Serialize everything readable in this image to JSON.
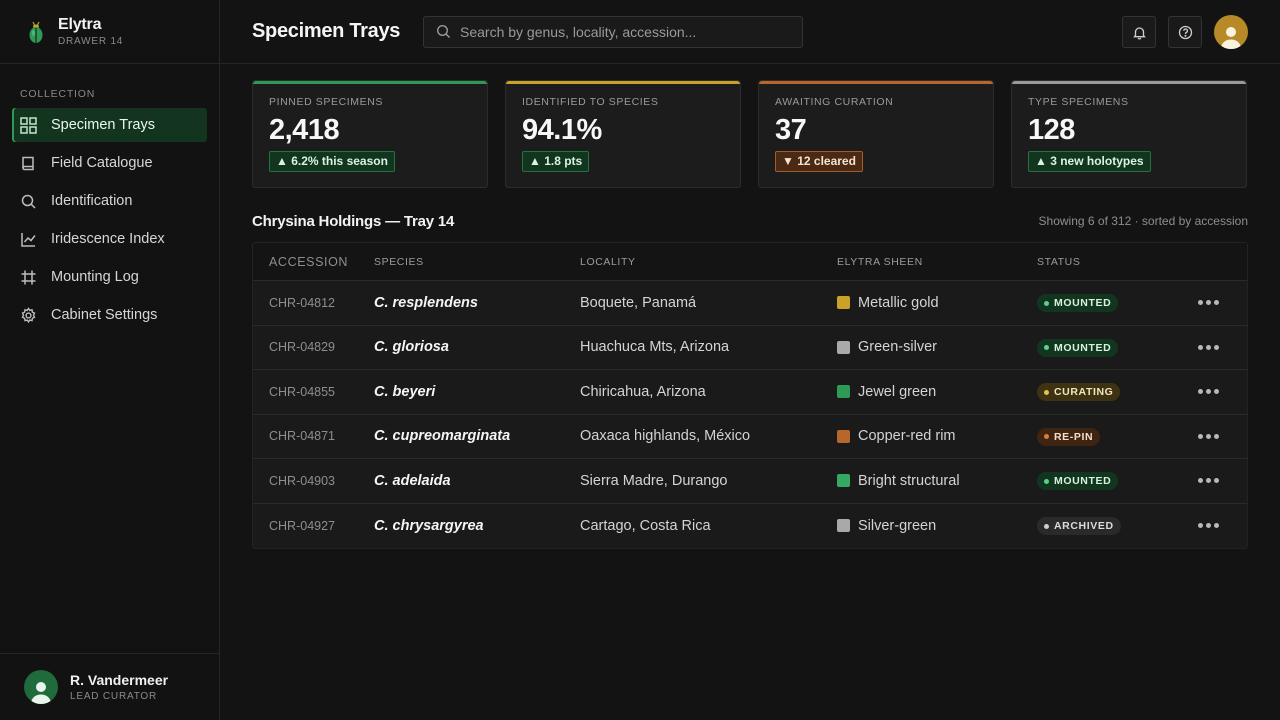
{
  "brand": {
    "name": "Elytra",
    "sub": "DRAWER 14"
  },
  "sidebar": {
    "section": "COLLECTION",
    "items": [
      {
        "label": "Specimen Trays",
        "icon": "grid-icon",
        "active": true
      },
      {
        "label": "Field Catalogue",
        "icon": "book-icon",
        "active": false
      },
      {
        "label": "Identification",
        "icon": "search-icon",
        "active": false
      },
      {
        "label": "Iridescence Index",
        "icon": "chart-icon",
        "active": false
      },
      {
        "label": "Mounting Log",
        "icon": "hash-icon",
        "active": false
      },
      {
        "label": "Cabinet Settings",
        "icon": "gear-icon",
        "active": false
      }
    ],
    "user": {
      "name": "R. Vandermeer",
      "role": "LEAD CURATOR"
    }
  },
  "header": {
    "title": "Specimen Trays",
    "search_placeholder": "Search by genus, locality, accession..."
  },
  "stats": [
    {
      "label": "PINNED SPECIMENS",
      "value": "2,418",
      "delta": "▲ 6.2% this season",
      "direction": "up",
      "accent": "#2f9a55"
    },
    {
      "label": "IDENTIFIED TO SPECIES",
      "value": "94.1%",
      "delta": "▲ 1.8 pts",
      "direction": "up",
      "accent": "#c9a227"
    },
    {
      "label": "AWAITING CURATION",
      "value": "37",
      "delta": "▼ 12 cleared",
      "direction": "down",
      "accent": "#b8662a"
    },
    {
      "label": "TYPE SPECIMENS",
      "value": "128",
      "delta": "▲ 3 new holotypes",
      "direction": "up",
      "accent": "#9a9a9a"
    }
  ],
  "table": {
    "title": "Chrysina Holdings — Tray 14",
    "meta": "Showing 6 of 312 · sorted by accession",
    "columns": [
      "ACCESSION",
      "SPECIES",
      "LOCALITY",
      "ELYTRA SHEEN",
      "STATUS"
    ],
    "rows": [
      {
        "accession": "CHR-04812",
        "species": "C. resplendens",
        "locality": "Boquete, Panamá",
        "sheen": "Metallic gold",
        "sheen_color": "#c9a227",
        "status": "MOUNTED"
      },
      {
        "accession": "CHR-04829",
        "species": "C. gloriosa",
        "locality": "Huachuca Mts, Arizona",
        "sheen": "Green-silver",
        "sheen_color": "#a9a9a9",
        "status": "MOUNTED"
      },
      {
        "accession": "CHR-04855",
        "species": "C. beyeri",
        "locality": "Chiricahua, Arizona",
        "sheen": "Jewel green",
        "sheen_color": "#2f9a55",
        "status": "CURATING"
      },
      {
        "accession": "CHR-04871",
        "species": "C. cupreomarginata",
        "locality": "Oaxaca highlands, México",
        "sheen": "Copper-red rim",
        "sheen_color": "#b8662a",
        "status": "RE-PIN"
      },
      {
        "accession": "CHR-04903",
        "species": "C. adelaida",
        "locality": "Sierra Madre, Durango",
        "sheen": "Bright structural",
        "sheen_color": "#35a866",
        "status": "MOUNTED"
      },
      {
        "accession": "CHR-04927",
        "species": "C. chrysargyrea",
        "locality": "Cartago, Costa Rica",
        "sheen": "Silver-green",
        "sheen_color": "#a9a9a9",
        "status": "ARCHIVED"
      }
    ]
  },
  "status_styles": {
    "MOUNTED": {
      "bg": "#12351f",
      "fg": "#d6f2de",
      "dot": "#5fd08a"
    },
    "CURATING": {
      "bg": "#3d3212",
      "fg": "#f3e6bd",
      "dot": "#e8c04a"
    },
    "RE-PIN": {
      "bg": "#3f2412",
      "fg": "#f4ddcc",
      "dot": "#e07a35"
    },
    "ARCHIVED": {
      "bg": "#2a2a2a",
      "fg": "#dcdcdc",
      "dot": "#cfcfcf"
    }
  }
}
